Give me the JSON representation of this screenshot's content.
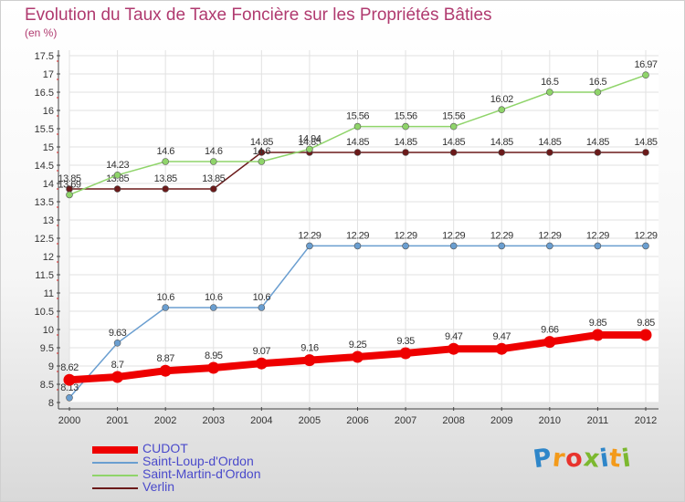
{
  "title": "Evolution du Taux de Taxe Foncière sur les Propriétés Bâties",
  "unit_label": "(en %)",
  "logo": {
    "letters": [
      "P",
      "r",
      "o",
      "x",
      "i",
      "t",
      "i"
    ],
    "colors": [
      "#2e86c9",
      "#f39a1a",
      "#e8332d",
      "#7cb82f",
      "#2e86c9",
      "#f39a1a",
      "#7cb82f"
    ]
  },
  "chart_data": {
    "type": "line",
    "title": "Evolution du Taux de Taxe Foncière sur les Propriétés Bâties",
    "ylabel": "(en %)",
    "xlabel": "",
    "x": [
      "2000",
      "2001",
      "2002",
      "2003",
      "2004",
      "2005",
      "2006",
      "2007",
      "2008",
      "2009",
      "2010",
      "2011",
      "2012"
    ],
    "ylim": [
      8,
      17.5
    ],
    "yticks": [
      "8",
      "8.5",
      "9",
      "9.5",
      "10",
      "10.5",
      "11",
      "11.5",
      "12",
      "12.5",
      "13",
      "13.5",
      "14",
      "14.5",
      "15",
      "15.5",
      "16",
      "16.5",
      "17",
      "17.5"
    ],
    "grid": true,
    "legend_position": "bottom-left",
    "series": [
      {
        "name": "Verlin",
        "color": "#6b1a1a",
        "values": [
          13.85,
          13.85,
          13.85,
          13.85,
          14.85,
          14.85,
          14.85,
          14.85,
          14.85,
          14.85,
          14.85,
          14.85,
          14.85
        ],
        "labels": [
          "13.85",
          "13.85",
          "13.85",
          "13.85",
          "14.85",
          "14.85",
          "14.85",
          "14.85",
          "14.85",
          "14.85",
          "14.85",
          "14.85",
          "14.85"
        ]
      },
      {
        "name": "Saint-Martin-d'Ordon",
        "color": "#8fd46a",
        "values": [
          13.69,
          14.23,
          14.6,
          14.6,
          14.6,
          14.94,
          15.56,
          15.56,
          15.56,
          16.02,
          16.5,
          16.5,
          16.97
        ],
        "labels": [
          "13.69",
          "14.23",
          "14.6",
          "14.6",
          "14.6",
          "14.94",
          "15.56",
          "15.56",
          "15.56",
          "16.02",
          "16.5",
          "16.5",
          "16.97"
        ]
      },
      {
        "name": "Saint-Loup-d'Ordon",
        "color": "#6a9ed0",
        "values": [
          8.13,
          9.63,
          10.6,
          10.6,
          10.6,
          12.29,
          12.29,
          12.29,
          12.29,
          12.29,
          12.29,
          12.29,
          12.29
        ],
        "labels": [
          "8.13",
          "9.63",
          "10.6",
          "10.6",
          "10.6",
          "12.29",
          "12.29",
          "12.29",
          "12.29",
          "12.29",
          "12.29",
          "12.29",
          "12.29"
        ]
      },
      {
        "name": "CUDOT",
        "color": "#ee0000",
        "values": [
          8.62,
          8.7,
          8.87,
          8.95,
          9.07,
          9.16,
          9.25,
          9.35,
          9.47,
          9.47,
          9.66,
          9.85,
          9.85
        ],
        "labels": [
          "8.62",
          "8.7",
          "8.87",
          "8.95",
          "9.07",
          "9.16",
          "9.25",
          "9.35",
          "9.47",
          "9.47",
          "9.66",
          "9.85",
          "9.85"
        ]
      }
    ],
    "legend_order": [
      "CUDOT",
      "Saint-Loup-d'Ordon",
      "Saint-Martin-d'Ordon",
      "Verlin"
    ]
  }
}
